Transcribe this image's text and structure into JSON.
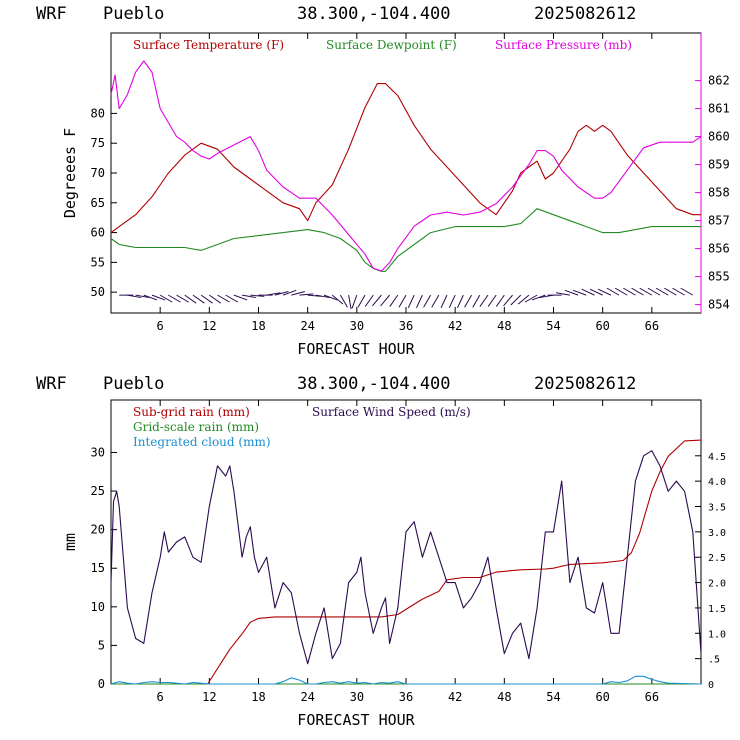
{
  "panels": [
    {
      "header": {
        "model": "WRF",
        "location": "Pueblo",
        "coords": "38.300,-104.400",
        "init": "2025082612"
      }
    },
    {
      "header": {
        "model": "WRF",
        "location": "Pueblo",
        "coords": "38.300,-104.400",
        "init": "2025082612"
      }
    }
  ],
  "chart_data": [
    {
      "type": "line",
      "xlabel": "FORECAST HOUR",
      "ylabel": "Degreees F",
      "xlim": [
        0,
        72
      ],
      "ylim": [
        46.5,
        93.5
      ],
      "y2lim": [
        853.7,
        863.7
      ],
      "xticks": [
        6,
        12,
        18,
        24,
        30,
        36,
        42,
        48,
        54,
        60,
        66
      ],
      "xtick_labels": [
        "6",
        "12",
        "18",
        "24",
        "30",
        "36",
        "42",
        "48",
        "54",
        "60",
        "66"
      ],
      "yticks": [
        50,
        55,
        60,
        65,
        70,
        75,
        80
      ],
      "ytick_labels": [
        "50",
        "55",
        "60",
        "65",
        "70",
        "75",
        "80"
      ],
      "y2ticks": [
        854,
        855,
        856,
        857,
        858,
        859,
        860,
        861,
        862
      ],
      "y2tick_labels": [
        "854",
        "855",
        "856",
        "857",
        "858",
        "859",
        "860",
        "861",
        "862"
      ],
      "grid": false,
      "legend_position": "top",
      "series": [
        {
          "name": "Surface Temperature (F)",
          "color": "#b00000",
          "axis": "left",
          "x": [
            0,
            1,
            3,
            5,
            7,
            9,
            11,
            13,
            15,
            17,
            19,
            21,
            23,
            24,
            25,
            27,
            29,
            31,
            32.5,
            33.5,
            35,
            37,
            39,
            41,
            43,
            45,
            47,
            48,
            49,
            50,
            51,
            52,
            53,
            54,
            55,
            56,
            57,
            58,
            59,
            60,
            61,
            62,
            63,
            65,
            67,
            69,
            71,
            72
          ],
          "y": [
            60,
            61,
            63,
            66,
            70,
            73,
            75,
            74,
            71,
            69,
            67,
            65,
            64,
            62,
            65,
            68,
            74,
            81,
            85,
            85,
            83,
            78,
            74,
            71,
            68,
            65,
            63,
            65,
            67,
            70,
            71,
            72,
            69,
            70,
            72,
            74,
            77,
            78,
            77,
            78,
            77,
            75,
            73,
            70,
            67,
            64,
            63,
            63
          ]
        },
        {
          "name": "Surface Dewpoint (F)",
          "color": "#228b22",
          "axis": "left",
          "x": [
            0,
            1,
            3,
            6,
            9,
            11,
            13,
            15,
            18,
            21,
            24,
            26,
            28,
            30,
            31,
            32,
            33,
            33.5,
            35,
            37,
            39,
            42,
            45,
            48,
            50,
            52,
            54,
            56,
            58,
            60,
            62,
            64,
            66,
            68,
            70,
            72
          ],
          "y": [
            59,
            58,
            57.5,
            57.5,
            57.5,
            57,
            58,
            59,
            59.5,
            60,
            60.5,
            60,
            59,
            57,
            55,
            54,
            53.5,
            53.5,
            56,
            58,
            60,
            61,
            61,
            61,
            61.5,
            64,
            63,
            62,
            61,
            60,
            60,
            60.5,
            61,
            61,
            61,
            61
          ]
        },
        {
          "name": "Surface Pressure (mb)",
          "color": "#e000e0",
          "axis": "right",
          "x": [
            0,
            0.5,
            1,
            2,
            3,
            4,
            5,
            6,
            7,
            8,
            9,
            10,
            11,
            12,
            13,
            15,
            17,
            18,
            19,
            21,
            23,
            25,
            27,
            29,
            31,
            32,
            33,
            34,
            35,
            37,
            39,
            41,
            43,
            45,
            47,
            49,
            51,
            52,
            53,
            54,
            55,
            57,
            59,
            60,
            61,
            63,
            65,
            67,
            69,
            71,
            72
          ],
          "y": [
            861.5,
            862.2,
            861,
            861.5,
            862.3,
            862.7,
            862.3,
            861,
            860.5,
            860,
            859.8,
            859.5,
            859.3,
            859.2,
            859.4,
            859.7,
            860,
            859.5,
            858.8,
            858.2,
            857.8,
            857.8,
            857.2,
            856.5,
            855.8,
            855.3,
            855.2,
            855.5,
            856,
            856.8,
            857.2,
            857.3,
            857.2,
            857.3,
            857.6,
            858.2,
            859,
            859.5,
            859.5,
            859.3,
            858.8,
            858.2,
            857.8,
            857.8,
            858,
            858.8,
            859.6,
            859.8,
            859.8,
            859.8,
            860
          ]
        }
      ],
      "wind_barbs": {
        "y": 49.5,
        "x": [
          1,
          2,
          3,
          4,
          5,
          6,
          7,
          8,
          9,
          10,
          11,
          12,
          13,
          14,
          15,
          16,
          17,
          18,
          19,
          20,
          21,
          22,
          23,
          24,
          25,
          26,
          27,
          28,
          29,
          30,
          31,
          32,
          33,
          34,
          35,
          36,
          37,
          38,
          39,
          40,
          41,
          42,
          43,
          44,
          45,
          46,
          47,
          48,
          49,
          50,
          51,
          52,
          53,
          54,
          55,
          56,
          57,
          58,
          59,
          60,
          61,
          62,
          63,
          64,
          65,
          66,
          67,
          68,
          69,
          70,
          71
        ],
        "direction_deg": [
          90,
          100,
          100,
          110,
          110,
          120,
          120,
          120,
          125,
          125,
          125,
          125,
          120,
          120,
          110,
          100,
          95,
          90,
          80,
          75,
          70,
          75,
          85,
          95,
          100,
          110,
          130,
          150,
          170,
          200,
          210,
          215,
          220,
          220,
          215,
          210,
          205,
          205,
          210,
          210,
          205,
          205,
          205,
          210,
          210,
          215,
          215,
          215,
          220,
          225,
          230,
          240,
          250,
          260,
          270,
          280,
          290,
          290,
          295,
          295,
          295,
          300,
          300,
          300,
          300,
          300,
          300,
          300,
          300,
          300,
          300
        ]
      }
    },
    {
      "type": "line",
      "xlabel": "FORECAST HOUR",
      "ylabel": "mm",
      "xlim": [
        0,
        72
      ],
      "ylim": [
        0,
        36.8
      ],
      "y2lim": [
        0,
        5.6
      ],
      "xticks": [
        6,
        12,
        18,
        24,
        30,
        36,
        42,
        48,
        54,
        60,
        66
      ],
      "xtick_labels": [
        "6",
        "12",
        "18",
        "24",
        "30",
        "36",
        "42",
        "48",
        "54",
        "60",
        "66"
      ],
      "yticks": [
        0,
        5,
        10,
        15,
        20,
        25,
        30
      ],
      "ytick_labels": [
        "0",
        "5",
        "10",
        "15",
        "20",
        "25",
        "30"
      ],
      "y2ticks": [
        0,
        0.5,
        1,
        1.5,
        2,
        2.5,
        3,
        3.5,
        4,
        4.5
      ],
      "y2tick_labels": [
        "0",
        ".5",
        "1.0",
        "1.5",
        "2.0",
        "2.5",
        "3.0",
        "3.5",
        "4.0",
        "4.5"
      ],
      "grid": false,
      "legend_position": "top-left",
      "series": [
        {
          "name": "Sub-grid rain (mm)",
          "color": "#b00000",
          "axis": "left",
          "x": [
            0,
            11.8,
            13,
            14.5,
            16,
            17,
            18,
            20,
            33,
            35,
            38,
            40,
            41,
            43,
            45,
            47,
            50,
            53,
            54,
            56,
            60,
            62.5,
            63.5,
            64.5,
            66,
            67,
            68,
            70,
            72
          ],
          "y": [
            0,
            0,
            2,
            4.5,
            6.5,
            8,
            8.5,
            8.7,
            8.7,
            9,
            11,
            12,
            13.5,
            13.8,
            13.8,
            14.5,
            14.8,
            14.9,
            15,
            15.5,
            15.7,
            16,
            17,
            19.5,
            25,
            27.5,
            29.5,
            31.5,
            31.6
          ]
        },
        {
          "name": "Grid-scale rain (mm)",
          "color": "#228b22",
          "axis": "left",
          "x": [
            0,
            72
          ],
          "y": [
            0,
            0
          ]
        },
        {
          "name": "Integrated cloud (mm)",
          "color": "#1a8fd0",
          "axis": "left",
          "x": [
            0,
            1,
            2,
            3,
            4,
            5,
            6,
            7,
            8,
            9,
            10,
            11,
            12,
            20,
            21,
            22,
            23,
            24,
            25,
            26,
            27,
            28,
            29,
            30,
            31,
            32,
            33,
            34,
            35,
            36,
            60,
            61,
            62,
            63,
            64,
            65,
            66,
            67,
            68,
            72
          ],
          "y": [
            0,
            0.3,
            0.1,
            0,
            0.2,
            0.3,
            0.2,
            0.2,
            0.1,
            0,
            0.2,
            0.1,
            0,
            0,
            0.3,
            0.8,
            0.5,
            0,
            0,
            0.2,
            0.3,
            0.1,
            0.3,
            0.1,
            0.2,
            0,
            0.2,
            0.1,
            0.3,
            0,
            0,
            0.3,
            0.2,
            0.4,
            1.0,
            1.0,
            0.6,
            0.3,
            0.1,
            0
          ]
        },
        {
          "name": "Surface Wind Speed (m/s)",
          "color": "#2a0a50",
          "axis": "right",
          "x": [
            0,
            0.3,
            0.7,
            1,
            1.5,
            2,
            3,
            4,
            5,
            6,
            6.5,
            7,
            8,
            9,
            10,
            11,
            12,
            13,
            13.5,
            14,
            14.5,
            15,
            16,
            16.5,
            17,
            17.5,
            18,
            19,
            20,
            21,
            22,
            23,
            24,
            25,
            26,
            27,
            28,
            29,
            30,
            30.5,
            31,
            32,
            33,
            33.5,
            34,
            35,
            36,
            37,
            38,
            39,
            40,
            41,
            42,
            43,
            44,
            45,
            46,
            47,
            48,
            49,
            50,
            51,
            52,
            53,
            54,
            55,
            56,
            57,
            58,
            59,
            60,
            61,
            62,
            63,
            64,
            65,
            66,
            67,
            68,
            69,
            70,
            71,
            72
          ],
          "y": [
            2.0,
            3.6,
            3.8,
            3.5,
            2.5,
            1.5,
            0.9,
            0.8,
            1.8,
            2.5,
            3.0,
            2.6,
            2.8,
            2.9,
            2.5,
            2.4,
            3.5,
            4.3,
            4.2,
            4.1,
            4.3,
            3.8,
            2.5,
            2.9,
            3.1,
            2.5,
            2.2,
            2.5,
            1.5,
            2.0,
            1.8,
            1.0,
            0.4,
            1.0,
            1.5,
            0.5,
            0.8,
            2.0,
            2.2,
            2.5,
            1.8,
            1.0,
            1.5,
            1.7,
            0.8,
            1.5,
            3.0,
            3.2,
            2.5,
            3.0,
            2.5,
            2.0,
            2.0,
            1.5,
            1.7,
            2.0,
            2.5,
            1.5,
            0.6,
            1.0,
            1.2,
            0.5,
            1.5,
            3.0,
            3.0,
            4.0,
            2.0,
            2.5,
            1.5,
            1.4,
            2.0,
            1.0,
            1.0,
            2.5,
            4.0,
            4.5,
            4.6,
            4.3,
            3.8,
            4.0,
            3.8,
            3.0,
            0.6
          ]
        }
      ]
    }
  ]
}
